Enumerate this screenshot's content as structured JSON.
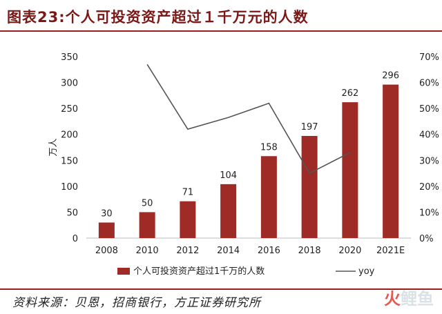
{
  "header": {
    "title": "图表23:个人可投资资产超过１千万元的人数"
  },
  "footer": {
    "source": "资料来源：贝恩，招商银行，方正证券研究所",
    "watermark_prefix": "火",
    "watermark_rest": "鲤鱼"
  },
  "colors": {
    "bar": "#9e2b25",
    "line": "#555555",
    "accent": "#9b1c1c"
  },
  "chart_data": {
    "type": "bar",
    "categories": [
      "2008",
      "2010",
      "2012",
      "2014",
      "2016",
      "2018",
      "2020",
      "2021E"
    ],
    "series": [
      {
        "name": "个人可投资资产超过1千万的人数",
        "type": "bar",
        "axis": "left",
        "values": [
          30,
          50,
          71,
          104,
          158,
          197,
          262,
          296
        ]
      },
      {
        "name": "yoy",
        "type": "line",
        "axis": "right",
        "values": [
          null,
          0.67,
          0.42,
          0.465,
          0.52,
          0.25,
          0.33,
          null
        ]
      }
    ],
    "data_labels": [
      "30",
      "50",
      "71",
      "104",
      "158",
      "197",
      "262",
      "296"
    ],
    "ylabel": "万人",
    "ylim": [
      0,
      350
    ],
    "yticks": [
      "0",
      "50",
      "100",
      "150",
      "200",
      "250",
      "300",
      "350"
    ],
    "y2lim": [
      0,
      0.7
    ],
    "y2ticks": [
      "0%",
      "10%",
      "20%",
      "30%",
      "40%",
      "50%",
      "60%",
      "70%"
    ],
    "grid": false,
    "legend_position": "bottom"
  }
}
